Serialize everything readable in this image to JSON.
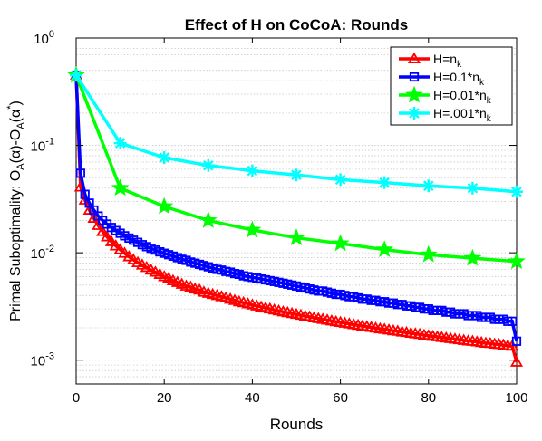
{
  "chart_data": {
    "type": "line",
    "title": "Effect of H on CoCoA: Rounds",
    "xlabel": "Rounds",
    "ylabel_parts": {
      "prefix": "Primal Suboptimality: O",
      "sub1": "A",
      "mid1": "(α)-O",
      "sub2": "A",
      "mid2": "(α",
      "sup": "*",
      "suffix": ")"
    },
    "xlim": [
      0,
      100
    ],
    "ylim": [
      0.0006,
      1
    ],
    "yscale": "log",
    "grid": "minor dotted on y",
    "legend_position": "top-right",
    "x_ticks": [
      0,
      20,
      40,
      60,
      80,
      100
    ],
    "x_tick_labels": [
      "0",
      "20",
      "40",
      "60",
      "80",
      "100"
    ],
    "y_ticks": [
      1,
      0.1,
      0.01,
      0.001
    ],
    "y_tick_labels": [
      {
        "base": "10",
        "exp": "0"
      },
      {
        "base": "10",
        "exp": "-1"
      },
      {
        "base": "10",
        "exp": "-2"
      },
      {
        "base": "10",
        "exp": "-3"
      }
    ],
    "series": [
      {
        "name_parts": {
          "text": "H=n",
          "sub": "k"
        },
        "color": "#ff0000",
        "marker": "triangle",
        "x": [
          0,
          1,
          2,
          3,
          4,
          5,
          6,
          7,
          8,
          9,
          10,
          11,
          12,
          13,
          14,
          15,
          16,
          17,
          18,
          19,
          20,
          21,
          22,
          23,
          24,
          25,
          26,
          27,
          28,
          29,
          30,
          31,
          32,
          33,
          34,
          35,
          36,
          37,
          38,
          39,
          40,
          41,
          42,
          43,
          44,
          45,
          46,
          47,
          48,
          49,
          50,
          51,
          52,
          53,
          54,
          55,
          56,
          57,
          58,
          59,
          60,
          61,
          62,
          63,
          64,
          65,
          66,
          67,
          68,
          69,
          70,
          71,
          72,
          73,
          74,
          75,
          76,
          77,
          78,
          79,
          80,
          81,
          82,
          83,
          84,
          85,
          86,
          87,
          88,
          89,
          90,
          91,
          92,
          93,
          94,
          95,
          96,
          97,
          98,
          99,
          100
        ],
        "y": [
          0.45,
          0.041,
          0.031,
          0.025,
          0.021,
          0.018,
          0.0158,
          0.0141,
          0.0127,
          0.0116,
          0.0107,
          0.0099,
          0.0092,
          0.0086,
          0.0081,
          0.0077,
          0.0073,
          0.0069,
          0.0066,
          0.0063,
          0.006,
          0.0058,
          0.0055,
          0.0053,
          0.0051,
          0.0049,
          0.0048,
          0.0046,
          0.0045,
          0.0043,
          0.0042,
          0.0041,
          0.004,
          0.0039,
          0.0038,
          0.0037,
          0.0036,
          0.0035,
          0.00343,
          0.00335,
          0.00327,
          0.0032,
          0.00313,
          0.00306,
          0.003,
          0.00294,
          0.00288,
          0.00282,
          0.00277,
          0.00272,
          0.00267,
          0.00262,
          0.00257,
          0.00253,
          0.00248,
          0.00244,
          0.0024,
          0.00236,
          0.00232,
          0.00228,
          0.00225,
          0.00221,
          0.00218,
          0.00214,
          0.00211,
          0.00208,
          0.00205,
          0.00202,
          0.00199,
          0.00196,
          0.00194,
          0.00191,
          0.00188,
          0.00186,
          0.00183,
          0.00181,
          0.00178,
          0.00176,
          0.00174,
          0.00171,
          0.00169,
          0.00167,
          0.00165,
          0.00163,
          0.00161,
          0.00159,
          0.00157,
          0.00155,
          0.00153,
          0.00151,
          0.0015,
          0.00148,
          0.00146,
          0.00144,
          0.00143,
          0.00141,
          0.0014,
          0.00138,
          0.00136,
          0.00135,
          0.00096
        ]
      },
      {
        "name_parts": {
          "text": "H=0.1*n",
          "sub": "k"
        },
        "color": "#0000ff",
        "marker": "square",
        "x": [
          0,
          1,
          2,
          3,
          4,
          5,
          6,
          7,
          8,
          9,
          10,
          11,
          12,
          13,
          14,
          15,
          16,
          17,
          18,
          19,
          20,
          21,
          22,
          23,
          24,
          25,
          26,
          27,
          28,
          29,
          30,
          31,
          32,
          33,
          34,
          35,
          36,
          37,
          38,
          39,
          40,
          41,
          42,
          43,
          44,
          45,
          46,
          47,
          48,
          49,
          50,
          51,
          52,
          53,
          54,
          55,
          56,
          57,
          58,
          59,
          60,
          61,
          62,
          63,
          64,
          65,
          66,
          67,
          68,
          69,
          70,
          71,
          72,
          73,
          74,
          75,
          76,
          77,
          78,
          79,
          80,
          81,
          82,
          83,
          84,
          85,
          86,
          87,
          88,
          89,
          90,
          91,
          92,
          93,
          94,
          95,
          96,
          97,
          98,
          99,
          100
        ],
        "y": [
          0.45,
          0.055,
          0.035,
          0.029,
          0.025,
          0.022,
          0.02,
          0.0185,
          0.0172,
          0.0161,
          0.0152,
          0.0144,
          0.0137,
          0.0131,
          0.0125,
          0.0119,
          0.0114,
          0.011,
          0.0106,
          0.0102,
          0.0099,
          0.0096,
          0.0093,
          0.009,
          0.0087,
          0.0085,
          0.0082,
          0.008,
          0.0078,
          0.0076,
          0.0074,
          0.0072,
          0.007,
          0.0069,
          0.0067,
          0.0066,
          0.0064,
          0.0063,
          0.0061,
          0.006,
          0.0059,
          0.0058,
          0.0057,
          0.0056,
          0.0055,
          0.0054,
          0.0053,
          0.0052,
          0.0051,
          0.005,
          0.0049,
          0.0048,
          0.0047,
          0.0046,
          0.0045,
          0.0044,
          0.0044,
          0.0043,
          0.0042,
          0.0041,
          0.0041,
          0.004,
          0.0039,
          0.0039,
          0.0038,
          0.0037,
          0.0037,
          0.0036,
          0.0036,
          0.0035,
          0.0035,
          0.0034,
          0.0034,
          0.0033,
          0.0033,
          0.0032,
          0.0032,
          0.0031,
          0.0031,
          0.003,
          0.003,
          0.0029,
          0.0029,
          0.0029,
          0.0028,
          0.0028,
          0.0027,
          0.0027,
          0.0027,
          0.0026,
          0.0026,
          0.0026,
          0.0025,
          0.0025,
          0.0025,
          0.0024,
          0.0024,
          0.0024,
          0.0023,
          0.0023,
          0.0015
        ]
      },
      {
        "name_parts": {
          "text": "H=0.01*n",
          "sub": "k"
        },
        "color": "#00ff00",
        "marker": "star",
        "x": [
          0,
          10,
          20,
          30,
          40,
          50,
          60,
          70,
          80,
          90,
          100
        ],
        "y": [
          0.45,
          0.04,
          0.027,
          0.02,
          0.0163,
          0.0138,
          0.0122,
          0.0107,
          0.0096,
          0.0089,
          0.0083
        ]
      },
      {
        "name_parts": {
          "text": "H=.001*n",
          "sub": "k"
        },
        "color": "#00ffff",
        "marker": "asterisk",
        "x": [
          0,
          10,
          20,
          30,
          40,
          50,
          60,
          70,
          80,
          90,
          100
        ],
        "y": [
          0.45,
          0.105,
          0.077,
          0.065,
          0.058,
          0.053,
          0.048,
          0.045,
          0.042,
          0.04,
          0.037
        ]
      }
    ]
  }
}
